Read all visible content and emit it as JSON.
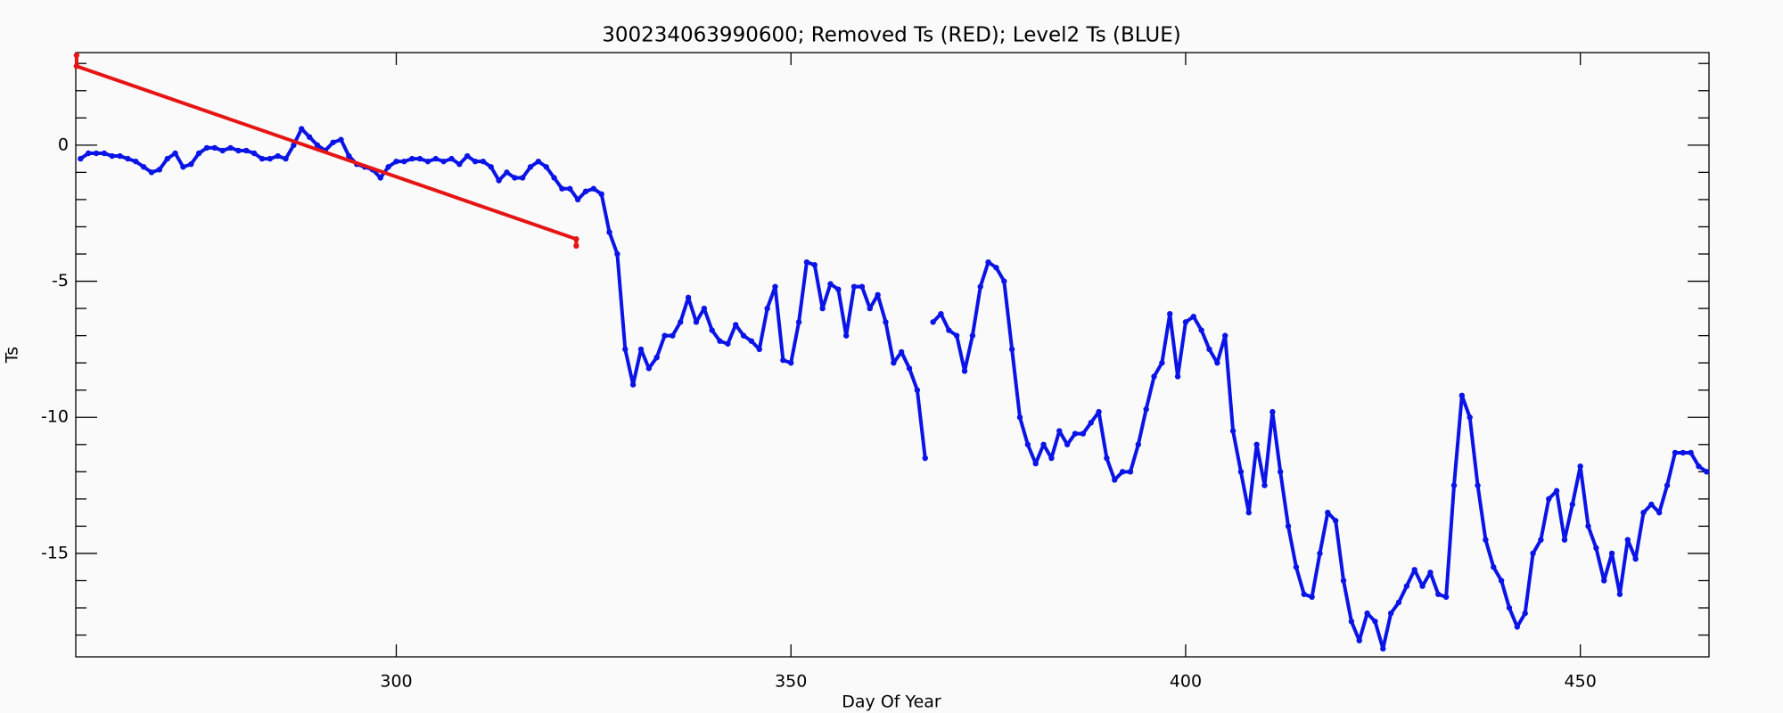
{
  "chart_data": {
    "type": "scatter",
    "title": "300234063990600; Removed Ts (RED); Level2 Ts (BLUE)",
    "x_label": "Day Of Year",
    "y_label": "Ts",
    "xlim": [
      259.4,
      466.3
    ],
    "ylim": [
      -18.8,
      3.4
    ],
    "xticks": [
      300,
      350,
      400,
      450
    ],
    "yticks": [
      -15,
      -10,
      -5,
      0
    ],
    "yminorticks": [
      -18,
      -17,
      -16,
      -14,
      -13,
      -12,
      -11,
      -9,
      -8,
      -7,
      -6,
      -4,
      -3,
      -2,
      -1,
      1,
      2,
      3
    ],
    "series": [
      {
        "name": "Level2 Ts",
        "color": "#0a14e6",
        "x": [
          260,
          261,
          262,
          263,
          264,
          265,
          266,
          267,
          268,
          269,
          270,
          271,
          272,
          273,
          274,
          275,
          276,
          277,
          278,
          279,
          280,
          281,
          282,
          283,
          284,
          285,
          286,
          287,
          288,
          289,
          290,
          291,
          292,
          293,
          294,
          295,
          296,
          297,
          298,
          299,
          300,
          301,
          302,
          303,
          304,
          305,
          306,
          307,
          308,
          309,
          310,
          311,
          312,
          313,
          314,
          315,
          316,
          317,
          318,
          319,
          320,
          321,
          322,
          323,
          324,
          325,
          326,
          327,
          328,
          329,
          330,
          331,
          332,
          333,
          334,
          335,
          336,
          337,
          338,
          339,
          340,
          341,
          342,
          343,
          344,
          345,
          346,
          347,
          348,
          349,
          350,
          351,
          352,
          353,
          354,
          355,
          356,
          357,
          358,
          359,
          360,
          361,
          362,
          363,
          364,
          365,
          366,
          367,
          367.5,
          368,
          369,
          370,
          371,
          372,
          373,
          374,
          375,
          376,
          377,
          378,
          379,
          380,
          381,
          382,
          383,
          384,
          385,
          386,
          387,
          388,
          389,
          390,
          391,
          392,
          393,
          394,
          395,
          396,
          397,
          398,
          399,
          400,
          401,
          402,
          403,
          404,
          405,
          406,
          407,
          408,
          409,
          410,
          411,
          412,
          413,
          414,
          415,
          416,
          417,
          418,
          419,
          420,
          421,
          422,
          423,
          424,
          425,
          426,
          427,
          428,
          429,
          430,
          431,
          432,
          433,
          434,
          435,
          436,
          437,
          438,
          439,
          440,
          441,
          442,
          443,
          444,
          445,
          446,
          447,
          448,
          449,
          450,
          451,
          452,
          453,
          454,
          455,
          456,
          457,
          458,
          459,
          460,
          461,
          462,
          463,
          464,
          465,
          466
        ],
        "values": [
          -0.5,
          -0.3,
          -0.3,
          -0.3,
          -0.4,
          -0.4,
          -0.5,
          -0.6,
          -0.8,
          -1.0,
          -0.9,
          -0.5,
          -0.3,
          -0.8,
          -0.7,
          -0.3,
          -0.1,
          -0.1,
          -0.2,
          -0.1,
          -0.2,
          -0.2,
          -0.3,
          -0.5,
          -0.5,
          -0.4,
          -0.5,
          0.0,
          0.6,
          0.3,
          0.0,
          -0.2,
          0.1,
          0.2,
          -0.4,
          -0.7,
          -0.8,
          -0.9,
          -1.2,
          -0.8,
          -0.6,
          -0.6,
          -0.5,
          -0.5,
          -0.6,
          -0.5,
          -0.6,
          -0.5,
          -0.7,
          -0.4,
          -0.6,
          -0.6,
          -0.8,
          -1.3,
          -1.0,
          -1.2,
          -1.2,
          -0.8,
          -0.6,
          -0.8,
          -1.2,
          -1.6,
          -1.6,
          -2.0,
          -1.7,
          -1.6,
          -1.8,
          -3.2,
          -4.0,
          -7.5,
          -8.8,
          -7.5,
          -8.2,
          -7.8,
          -7.0,
          -7.0,
          -6.5,
          -5.6,
          -6.5,
          -6.0,
          -6.8,
          -7.2,
          -7.3,
          -6.6,
          -7.0,
          -7.2,
          -7.5,
          -6.0,
          -5.2,
          -7.9,
          -8.0,
          -6.5,
          -4.3,
          -4.4,
          -6.0,
          -5.1,
          -5.3,
          -7.0,
          -5.2,
          -5.2,
          -6.0,
          -5.5,
          -6.5,
          -8.0,
          -7.6,
          -8.2,
          -9.0,
          -11.5,
          null,
          -6.5,
          -6.2,
          -6.8,
          -7.0,
          -8.3,
          -7.0,
          -5.2,
          -4.3,
          -4.5,
          -5.0,
          -7.5,
          -10.0,
          -11.0,
          -11.7,
          -11.0,
          -11.5,
          -10.5,
          -11.0,
          -10.6,
          -10.6,
          -10.2,
          -9.8,
          -11.5,
          -12.3,
          -12.0,
          -12.0,
          -11.0,
          -9.7,
          -8.5,
          -8.0,
          -6.2,
          -8.5,
          -6.5,
          -6.3,
          -6.8,
          -7.5,
          -8.0,
          -7.0,
          -10.5,
          -12.0,
          -13.5,
          -11.0,
          -12.5,
          -9.8,
          -12.0,
          -14.0,
          -15.5,
          -16.5,
          -16.6,
          -15.0,
          -13.5,
          -13.8,
          -16.0,
          -17.5,
          -18.2,
          -17.2,
          -17.5,
          -18.5,
          -17.2,
          -16.8,
          -16.2,
          -15.6,
          -16.2,
          -15.7,
          -16.5,
          -16.6,
          -12.5,
          -9.2,
          -10.0,
          -12.5,
          -14.5,
          -15.5,
          -16.0,
          -17.0,
          -17.7,
          -17.2,
          -15.0,
          -14.5,
          -13.0,
          -12.7,
          -14.5,
          -13.2,
          -11.8,
          -14.0,
          -14.8,
          -16.0,
          -15.0,
          -16.5,
          -14.5,
          -15.2,
          -13.5,
          -13.2,
          -13.5,
          -12.5,
          -11.3,
          -11.3,
          -11.3,
          -11.8,
          -12.0
        ]
      },
      {
        "name": "Removed Ts",
        "color": "#e61414",
        "x": [
          259.5,
          259.5,
          322.8,
          322.8
        ],
        "values": [
          3.3,
          2.9,
          -3.45,
          -3.7
        ]
      }
    ]
  }
}
